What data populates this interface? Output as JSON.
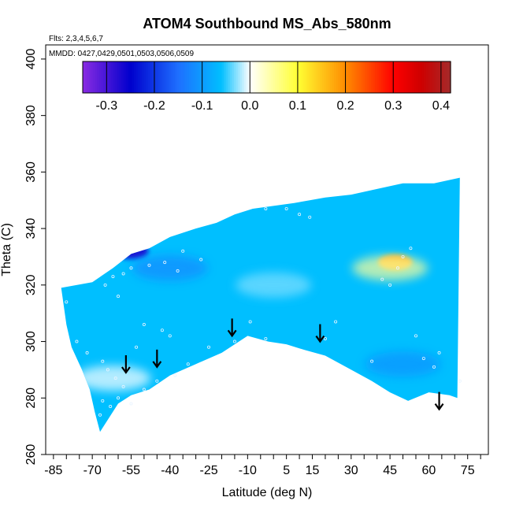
{
  "chart_data": {
    "type": "heatmap",
    "title": "ATOM4 Southbound MS_Abs_580nm",
    "flights_label": "Flts: 2,3,4,5,6,7",
    "dates_label": "MMDD: 0427,0429,0501,0503,0506,0509",
    "xlabel": "Latitude (deg N)",
    "ylabel": "Theta (C)",
    "xlim": [
      -88,
      83
    ],
    "ylim": [
      260,
      405
    ],
    "x_ticks": [
      -85,
      -70,
      -55,
      -40,
      -25,
      -10,
      5,
      15,
      30,
      45,
      60,
      75
    ],
    "y_ticks": [
      260,
      280,
      300,
      320,
      340,
      360,
      380,
      400
    ],
    "colorbar": {
      "ticks": [
        -0.3,
        -0.2,
        -0.1,
        0.0,
        0.1,
        0.2,
        0.3,
        0.4
      ],
      "tick_labels": [
        "-0.3",
        "-0.2",
        "-0.1",
        "0.0",
        "0.1",
        "0.2",
        "0.3",
        "0.4"
      ],
      "range": [
        -0.35,
        0.42
      ],
      "colors": [
        "#8a2be2",
        "#0000cd",
        "#1e6fff",
        "#00bfff",
        "#ffffff",
        "#ffff33",
        "#ff8c00",
        "#ff0000",
        "#cd0000",
        "#a52a2a"
      ]
    },
    "data_region": {
      "top": [
        [
          -70,
          321
        ],
        [
          -62,
          326
        ],
        [
          -55,
          331
        ],
        [
          -48,
          333
        ],
        [
          -40,
          337
        ],
        [
          -30,
          340
        ],
        [
          -22,
          342
        ],
        [
          -15,
          345
        ],
        [
          -8,
          347
        ],
        [
          0,
          348
        ],
        [
          8,
          349
        ],
        [
          14,
          350
        ],
        [
          20,
          351
        ],
        [
          30,
          352
        ],
        [
          40,
          354
        ],
        [
          50,
          356
        ],
        [
          62,
          356
        ],
        [
          72,
          358
        ]
      ],
      "bottom": [
        [
          -82,
          319
        ],
        [
          -80,
          306
        ],
        [
          -78,
          298
        ],
        [
          -74,
          290
        ],
        [
          -71,
          283
        ],
        [
          -69,
          275
        ],
        [
          -67,
          268
        ],
        [
          -60,
          278
        ],
        [
          -55,
          281
        ],
        [
          -48,
          283
        ],
        [
          -40,
          288
        ],
        [
          -30,
          292
        ],
        [
          -20,
          296
        ],
        [
          -10,
          302
        ],
        [
          -2,
          300
        ],
        [
          5,
          299
        ],
        [
          12,
          297
        ],
        [
          20,
          295
        ],
        [
          30,
          290
        ],
        [
          38,
          286
        ],
        [
          45,
          282
        ],
        [
          52,
          279
        ],
        [
          60,
          282
        ],
        [
          68,
          281
        ],
        [
          71,
          280
        ]
      ],
      "left_edge_x": -82,
      "right_edge_x": 72,
      "base_value": -0.06
    },
    "features": [
      {
        "lat": -55,
        "theta": 332,
        "value": -0.27,
        "description": "dark blue patch"
      },
      {
        "lat": -40,
        "theta": 326,
        "value": -0.12,
        "description": "mid blue band"
      },
      {
        "lat": 47,
        "theta": 328,
        "value": 0.18,
        "description": "yellow-orange spot"
      },
      {
        "lat": 45,
        "theta": 326,
        "value": 0.05,
        "description": "white halo"
      },
      {
        "lat": 50,
        "theta": 292,
        "value": -0.11,
        "description": "blue band"
      },
      {
        "lat": -62,
        "theta": 287,
        "value": 0.0,
        "description": "pale white patch"
      },
      {
        "lat": 0,
        "theta": 320,
        "value": -0.03,
        "description": "pale blue interior"
      }
    ],
    "sample_points": [
      [
        -80,
        314
      ],
      [
        -76,
        300
      ],
      [
        -72,
        296
      ],
      [
        -66,
        293
      ],
      [
        -64,
        290
      ],
      [
        -61,
        287
      ],
      [
        -58,
        284
      ],
      [
        -66,
        279
      ],
      [
        -63,
        277
      ],
      [
        -67,
        274
      ],
      [
        -60,
        280
      ],
      [
        -55,
        278
      ],
      [
        -50,
        283
      ],
      [
        -45,
        286
      ],
      [
        -38,
        288
      ],
      [
        -33,
        292
      ],
      [
        -25,
        298
      ],
      [
        -15,
        300
      ],
      [
        -9,
        307
      ],
      [
        -3,
        301
      ],
      [
        -40,
        302
      ],
      [
        -43,
        304
      ],
      [
        -50,
        306
      ],
      [
        -53,
        298
      ],
      [
        -60,
        316
      ],
      [
        -65,
        320
      ],
      [
        -62,
        323
      ],
      [
        -58,
        324
      ],
      [
        -55,
        326
      ],
      [
        -48,
        327
      ],
      [
        -42,
        328
      ],
      [
        -37,
        325
      ],
      [
        -28,
        329
      ],
      [
        -35,
        332
      ],
      [
        -3,
        347
      ],
      [
        5,
        347
      ],
      [
        10,
        345
      ],
      [
        14,
        344
      ],
      [
        20,
        301
      ],
      [
        24,
        307
      ],
      [
        38,
        293
      ],
      [
        42,
        322
      ],
      [
        45,
        320
      ],
      [
        48,
        326
      ],
      [
        50,
        330
      ],
      [
        53,
        333
      ],
      [
        55,
        302
      ],
      [
        58,
        294
      ],
      [
        62,
        291
      ],
      [
        72,
        286
      ],
      [
        64,
        296
      ]
    ],
    "arrows": [
      {
        "lat": -57,
        "theta": 289
      },
      {
        "lat": -45,
        "theta": 291
      },
      {
        "lat": -16,
        "theta": 302
      },
      {
        "lat": 18,
        "theta": 300
      },
      {
        "lat": 64,
        "theta": 276
      }
    ]
  }
}
